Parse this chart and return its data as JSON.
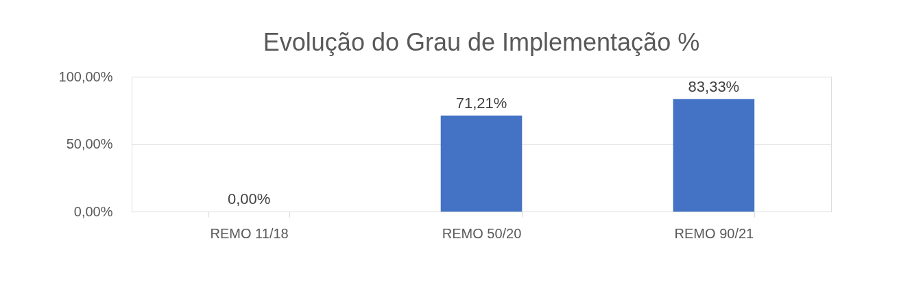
{
  "chart_data": {
    "type": "bar",
    "title": "Evolução do Grau de Implementação %",
    "categories": [
      "REMO 11/18",
      "REMO 50/20",
      "REMO 90/21"
    ],
    "values": [
      0,
      71.21,
      83.33
    ],
    "color": "#4472c4",
    "value_labels": [
      "0,00%",
      "71,21%",
      "83,33%"
    ],
    "ylim": [
      0,
      100
    ],
    "yticks": [
      {
        "value": 0,
        "label": "0,00%"
      },
      {
        "value": 50,
        "label": "50,00%"
      },
      {
        "value": 100,
        "label": "100,00%"
      }
    ],
    "grid": "y"
  }
}
